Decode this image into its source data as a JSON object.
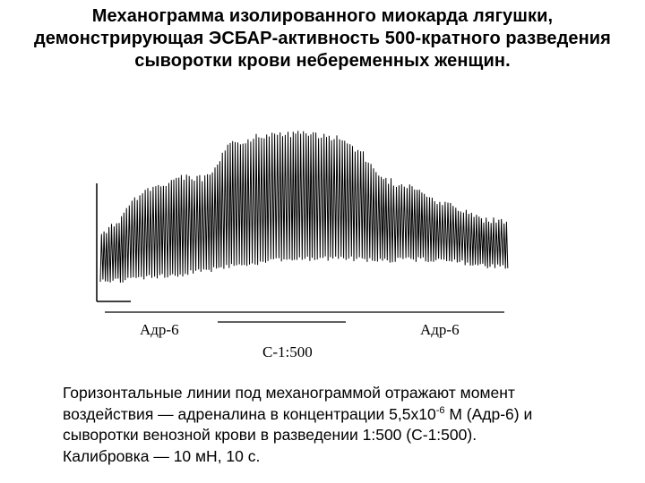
{
  "title": "Механограмма изолированного миокарда лягушки, демонстрирующая ЭСБАР-активность 500-кратного разведения сыворотки крови небеременных женщин.",
  "figure": {
    "marker_left_label": "Адр-6",
    "marker_middle_label": "С-1:500",
    "marker_right_label": "Адр-6"
  },
  "caption": {
    "line1": "Горизонтальные линии под механограммой отражают момент",
    "line2_pre": "воздействия — адреналина в концентрации 5,5х10",
    "line2_exp": "-6",
    "line2_post": " М (Адр-6) и",
    "line3": "сыворотки венозной крови в разведении 1:500 (С-1:500).",
    "line4": "Калибровка — 10 мН, 10 с."
  }
}
